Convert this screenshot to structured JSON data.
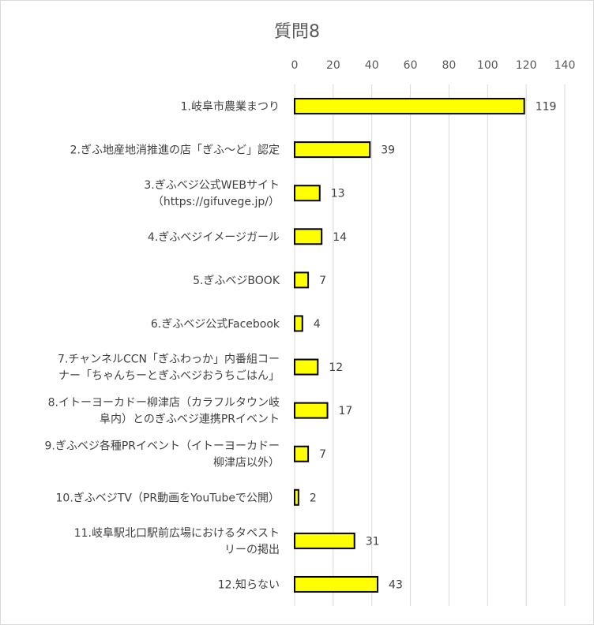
{
  "chart_data": {
    "type": "bar",
    "orientation": "horizontal",
    "title": "質問8",
    "xlim": [
      0,
      140
    ],
    "ticks": [
      0,
      20,
      40,
      60,
      80,
      100,
      120,
      140
    ],
    "grid": true,
    "bar_color": "#FFFF00",
    "categories": [
      [
        "1.岐阜市農業まつり"
      ],
      [
        "2.ぎふ地産地消推進の店「ぎふ～ど」認定"
      ],
      [
        "3.ぎふベジ公式WEBサイト",
        "（https://gifuvege.jp/）"
      ],
      [
        "4.ぎふベジイメージガール"
      ],
      [
        "5.ぎふベジBOOK"
      ],
      [
        "6.ぎふベジ公式Facebook"
      ],
      [
        "7.チャンネルCCN「ぎふわっか」内番組コー",
        "ナー「ちゃんちーとぎふベジおうちごはん」"
      ],
      [
        "8.イトーヨーカドー柳津店（カラフルタウン岐",
        "阜内）とのぎふベジ連携PRイベント"
      ],
      [
        "9.ぎふベジ各種PRイベント（イトーヨーカドー",
        "柳津店以外）"
      ],
      [
        "10.ぎふベジTV（PR動画をYouTubeで公開）"
      ],
      [
        "11.岐阜駅北口駅前広場におけるタペスト",
        "リーの掲出"
      ],
      [
        "12.知らない"
      ]
    ],
    "values": [
      119,
      39,
      13,
      14,
      7,
      4,
      12,
      17,
      7,
      2,
      31,
      43
    ]
  }
}
